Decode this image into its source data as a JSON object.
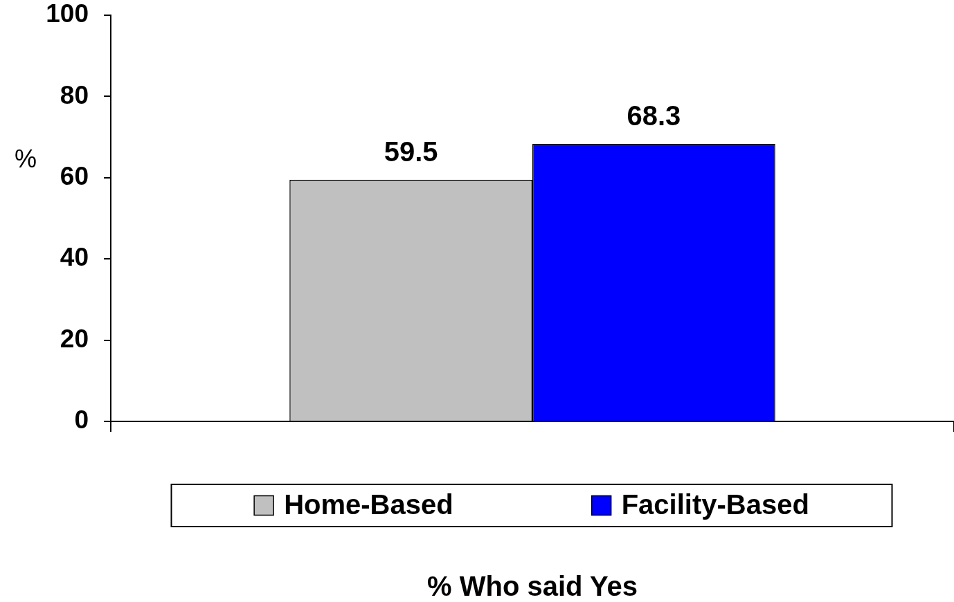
{
  "chart_data": {
    "type": "bar",
    "xlabel": "% Who said Yes",
    "ylabel": "%",
    "categories": [
      null
    ],
    "series": [
      {
        "name": "Home-Based",
        "color": "#c0c0c0",
        "values": [
          59.5
        ]
      },
      {
        "name": "Facility-Based",
        "color": "#0000ff",
        "values": [
          68.3
        ]
      }
    ],
    "ylim": [
      0,
      100
    ],
    "yticks": [
      0,
      20,
      40,
      60,
      80,
      100
    ],
    "grid": false,
    "legend": "bottom",
    "data_labels": true
  }
}
